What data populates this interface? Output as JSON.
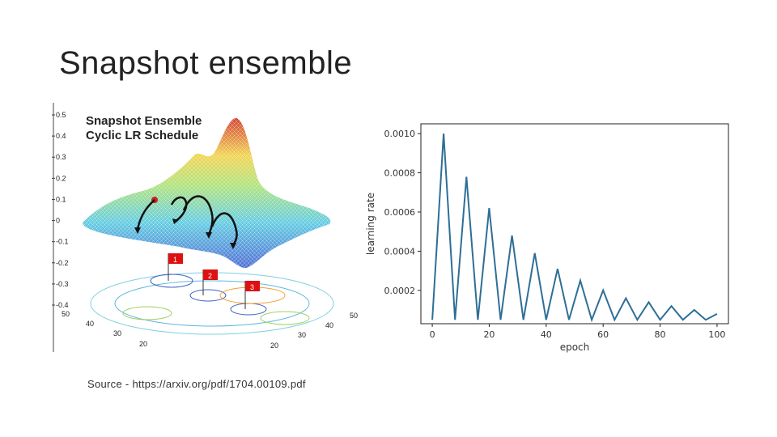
{
  "slide": {
    "title": "Snapshot ensemble",
    "source": "Source - https://arxiv.org/pdf/1704.00109.pdf"
  },
  "figure_3d": {
    "title_line1": "Snapshot Ensemble",
    "title_line2": "Cyclic LR Schedule",
    "z_ticks": [
      "0.5",
      "0.4",
      "0.3",
      "0.2",
      "0.1",
      "0",
      "-0.1",
      "-0.2",
      "-0.3",
      "-0.4"
    ],
    "left_ticks": [
      "50",
      "40",
      "30",
      "20"
    ],
    "right_ticks": [
      "50",
      "40",
      "30",
      "20"
    ],
    "flags": [
      "1",
      "2",
      "3"
    ],
    "colors": {
      "flag": "#dd1111",
      "start_point": "#cc2222",
      "arrow": "#111111"
    }
  },
  "chart_data": {
    "type": "line",
    "xlabel": "epoch",
    "ylabel": "learning rate",
    "xlim": [
      -4,
      104
    ],
    "ylim": [
      3e-05,
      0.00105
    ],
    "x_ticks": [
      0,
      20,
      40,
      60,
      80,
      100
    ],
    "y_ticks": [
      0.0002,
      0.0004,
      0.0006,
      0.0008,
      0.001
    ],
    "y_tick_labels": [
      "0.0002",
      "0.0004",
      "0.0006",
      "0.0008",
      "0.0010"
    ],
    "x_tick_labels": [
      "0",
      "20",
      "40",
      "60",
      "80",
      "100"
    ],
    "grid": false,
    "series": [
      {
        "color": "#2e6f96",
        "x": [
          0,
          4,
          8,
          12,
          16,
          20,
          24,
          28,
          32,
          36,
          40,
          44,
          48,
          52,
          56,
          60,
          64,
          68,
          72,
          76,
          80,
          84,
          88,
          92,
          96,
          100
        ],
        "y": [
          5e-05,
          0.001,
          5e-05,
          0.00078,
          5e-05,
          0.00062,
          5e-05,
          0.00048,
          5e-05,
          0.00039,
          5e-05,
          0.00031,
          5e-05,
          0.00025,
          5e-05,
          0.0002,
          5e-05,
          0.00016,
          5e-05,
          0.00014,
          5e-05,
          0.00012,
          5e-05,
          0.0001,
          5e-05,
          8e-05
        ]
      }
    ]
  }
}
